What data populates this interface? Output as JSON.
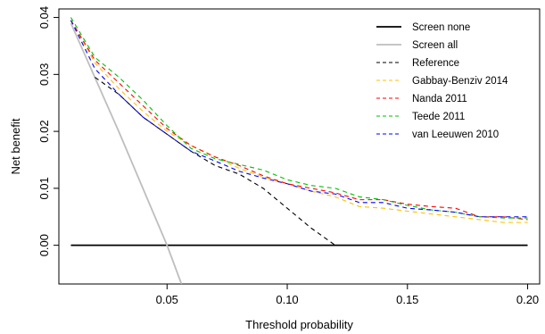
{
  "chart_data": {
    "type": "line",
    "title": "",
    "xlabel": "Threshold probability",
    "ylabel": "Net benefit",
    "xlim": [
      0.005,
      0.205
    ],
    "ylim": [
      -0.0068,
      0.0415
    ],
    "xticks": [
      0.05,
      0.1,
      0.15,
      0.2
    ],
    "xtick_labels": [
      "0.05",
      "0.10",
      "0.15",
      "0.20"
    ],
    "yticks": [
      0.0,
      0.01,
      0.02,
      0.03,
      0.04
    ],
    "ytick_labels": [
      "0.00",
      "0.01",
      "0.02",
      "0.03",
      "0.04"
    ],
    "grid": false,
    "legend_position": "top-right",
    "series": [
      {
        "name": "Screen none",
        "color": "#000000",
        "dash": "solid",
        "x": [
          0.01,
          0.2
        ],
        "y": [
          0.0,
          0.0
        ]
      },
      {
        "name": "Screen all",
        "color": "#bebebe",
        "dash": "solid",
        "x": [
          0.01,
          0.03,
          0.05,
          0.056
        ],
        "y": [
          0.039,
          0.0199,
          0.0,
          -0.0068
        ]
      },
      {
        "name": "Reference",
        "color": "#000000",
        "dash": "dashed",
        "x": [
          0.02,
          0.03,
          0.04,
          0.05,
          0.06,
          0.07,
          0.08,
          0.09,
          0.1,
          0.11,
          0.12
        ],
        "y": [
          0.0295,
          0.0265,
          0.0225,
          0.0195,
          0.0165,
          0.014,
          0.0125,
          0.01,
          0.0065,
          0.003,
          0.0
        ]
      },
      {
        "name": "Gabbay-Benziv 2014",
        "color": "#ffc000",
        "dash": "dashed",
        "x": [
          0.01,
          0.02,
          0.03,
          0.04,
          0.05,
          0.06,
          0.07,
          0.08,
          0.09,
          0.1,
          0.11,
          0.12,
          0.13,
          0.14,
          0.15,
          0.16,
          0.17,
          0.18,
          0.19,
          0.2
        ],
        "y": [
          0.0395,
          0.032,
          0.0275,
          0.0235,
          0.02,
          0.0175,
          0.0155,
          0.0135,
          0.012,
          0.0108,
          0.0095,
          0.0085,
          0.0068,
          0.0065,
          0.006,
          0.0055,
          0.005,
          0.0045,
          0.004,
          0.004
        ]
      },
      {
        "name": "Nanda 2011",
        "color": "#ff0000",
        "dash": "dashed",
        "x": [
          0.01,
          0.02,
          0.03,
          0.04,
          0.05,
          0.06,
          0.07,
          0.08,
          0.09,
          0.1,
          0.11,
          0.12,
          0.13,
          0.14,
          0.15,
          0.16,
          0.17,
          0.18,
          0.19,
          0.2
        ],
        "y": [
          0.0395,
          0.0325,
          0.0285,
          0.0245,
          0.0205,
          0.0175,
          0.0155,
          0.014,
          0.0122,
          0.0108,
          0.01,
          0.0092,
          0.008,
          0.008,
          0.0072,
          0.0068,
          0.0065,
          0.005,
          0.005,
          0.0045
        ]
      },
      {
        "name": "Teede 2011",
        "color": "#00c000",
        "dash": "dashed",
        "x": [
          0.01,
          0.02,
          0.03,
          0.04,
          0.05,
          0.06,
          0.07,
          0.08,
          0.09,
          0.1,
          0.11,
          0.12,
          0.13,
          0.14,
          0.15,
          0.16,
          0.17,
          0.18,
          0.19,
          0.2
        ],
        "y": [
          0.04,
          0.033,
          0.0295,
          0.0255,
          0.021,
          0.017,
          0.0152,
          0.0142,
          0.0132,
          0.0115,
          0.0105,
          0.01,
          0.0085,
          0.008,
          0.007,
          0.0062,
          0.0058,
          0.005,
          0.0048,
          0.0048
        ]
      },
      {
        "name": "van Leeuwen 2010",
        "color": "#0000ff",
        "dash": "dashed",
        "x": [
          0.01,
          0.02,
          0.03,
          0.04,
          0.05,
          0.06,
          0.07,
          0.08,
          0.09,
          0.1,
          0.11,
          0.12,
          0.13,
          0.14,
          0.15,
          0.16,
          0.17,
          0.18,
          0.19,
          0.2
        ],
        "y": [
          0.0395,
          0.031,
          0.0265,
          0.0225,
          0.0195,
          0.0165,
          0.0148,
          0.013,
          0.0118,
          0.0108,
          0.0095,
          0.009,
          0.0075,
          0.0075,
          0.0065,
          0.0062,
          0.0058,
          0.005,
          0.005,
          0.005
        ]
      }
    ]
  }
}
